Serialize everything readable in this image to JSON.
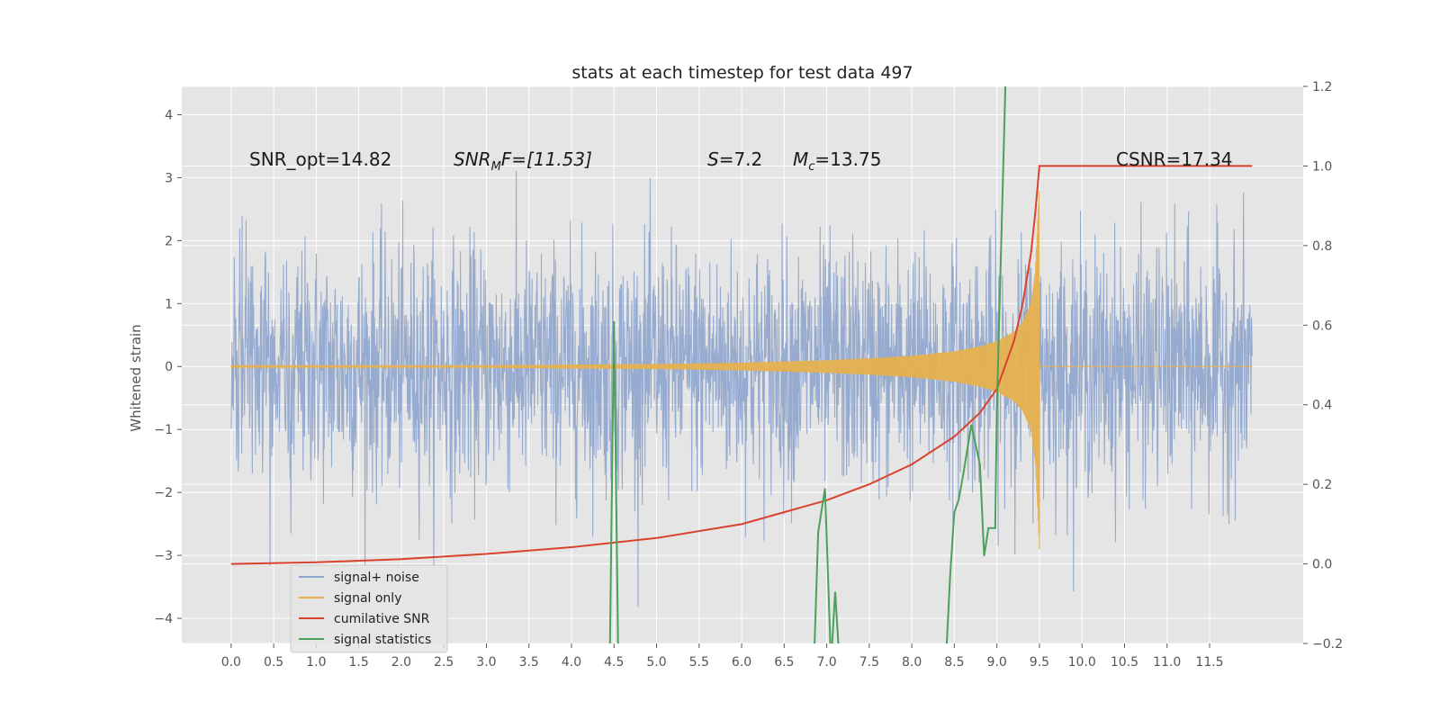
{
  "chart_data": {
    "type": "line",
    "title": "stats at each timestep for test data 497",
    "xlabel": "",
    "ylabel": "Whitened strain",
    "xlim": [
      -0.58,
      12.6
    ],
    "ylim": [
      -4.4,
      4.45
    ],
    "y2lim": [
      -0.2,
      1.2
    ],
    "grid": true,
    "legend_position": "lower-left",
    "x_ticks": [
      "0.0",
      "0.5",
      "1.0",
      "1.5",
      "2.0",
      "2.5",
      "3.0",
      "3.5",
      "4.0",
      "4.5",
      "5.0",
      "5.5",
      "6.0",
      "6.5",
      "7.0",
      "7.5",
      "8.0",
      "8.5",
      "9.0",
      "9.5",
      "10.0",
      "10.5",
      "11.0",
      "11.5"
    ],
    "y_ticks": [
      "4",
      "3",
      "2",
      "1",
      "0",
      "−1",
      "−2",
      "−3",
      "−4"
    ],
    "y_tick_values": [
      4,
      3,
      2,
      1,
      0,
      -1,
      -2,
      -3,
      -4
    ],
    "y2_ticks": [
      "1.2",
      "1.0",
      "0.8",
      "0.6",
      "0.4",
      "0.2",
      "0.0",
      "−0.2"
    ],
    "y2_tick_values": [
      1.2,
      1.0,
      0.8,
      0.6,
      0.4,
      0.2,
      0.0,
      -0.2
    ],
    "annotations": {
      "snr_opt": "SNR_opt=14.82",
      "snr_mf_main": "SNR",
      "snr_mf_sub": "M",
      "snr_mf_rest": "F=[11.53]",
      "s_main": "S",
      "s_rest": "=7.2",
      "mc_main": "M",
      "mc_sub": "c",
      "mc_rest": "=13.75",
      "csnr": "CSNR=17.34"
    },
    "series": [
      {
        "name": "signal+ noise",
        "color": "#8da4cc",
        "axis": "left",
        "x_range": [
          0.0,
          12.0
        ],
        "noise_std": 1.0,
        "approx_envelope": [
          -2.4,
          2.4
        ]
      },
      {
        "name": "signal only",
        "color": "#e6b14e",
        "axis": "left",
        "x": [
          0.0,
          1.0,
          2.0,
          3.0,
          4.0,
          5.0,
          6.0,
          6.5,
          7.0,
          7.5,
          8.0,
          8.5,
          8.8,
          9.0,
          9.2,
          9.3,
          9.4,
          9.45,
          9.5
        ],
        "amplitude": [
          0.02,
          0.02,
          0.02,
          0.02,
          0.03,
          0.04,
          0.06,
          0.08,
          0.1,
          0.13,
          0.17,
          0.24,
          0.32,
          0.4,
          0.55,
          0.7,
          1.0,
          1.5,
          2.9
        ]
      },
      {
        "name": "cumilative SNR",
        "color": "#d9432e",
        "axis": "right",
        "x": [
          0.0,
          1.0,
          2.0,
          3.0,
          4.0,
          5.0,
          6.0,
          7.0,
          7.5,
          8.0,
          8.5,
          8.8,
          9.0,
          9.2,
          9.3,
          9.4,
          9.45,
          9.5,
          12.0
        ],
        "y": [
          0.0,
          0.004,
          0.012,
          0.025,
          0.042,
          0.065,
          0.1,
          0.16,
          0.2,
          0.25,
          0.32,
          0.38,
          0.44,
          0.56,
          0.65,
          0.78,
          0.88,
          1.0,
          1.0
        ]
      },
      {
        "name": "signal statistics",
        "color": "#4ca05a",
        "axis": "right",
        "x": [
          4.45,
          4.5,
          4.55,
          6.85,
          6.9,
          6.98,
          7.05,
          7.1,
          7.15,
          7.2,
          8.4,
          8.45,
          8.5,
          8.55,
          8.6,
          8.7,
          8.8,
          8.85,
          8.9,
          8.98,
          9.0,
          9.1,
          9.12
        ],
        "y": [
          -0.25,
          0.61,
          -0.25,
          -0.25,
          0.08,
          0.19,
          -0.25,
          -0.07,
          -0.25,
          -0.25,
          -0.25,
          -0.03,
          0.13,
          0.16,
          0.22,
          0.35,
          0.25,
          0.02,
          0.09,
          0.09,
          0.4,
          1.2,
          1.25
        ]
      }
    ]
  }
}
